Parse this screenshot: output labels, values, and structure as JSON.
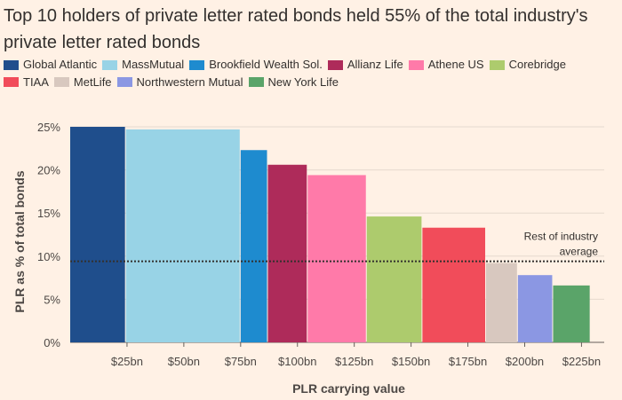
{
  "title": "Top 10 holders of private letter rated bonds held 55% of the total industry's private letter rated bonds",
  "chart_data": {
    "type": "bar",
    "variant": "variable-width (marimekko)",
    "title": "Top 10 holders of private letter rated bonds held 55% of the total industry's private letter rated bonds",
    "xlabel": "PLR carrying value",
    "ylabel": "PLR as % of total bonds",
    "xlim": [
      0,
      235
    ],
    "ylim": [
      0,
      25
    ],
    "x_tick_values": [
      25,
      50,
      75,
      100,
      125,
      150,
      175,
      200,
      225
    ],
    "x_tick_labels": [
      "$25bn",
      "$50bn",
      "$75bn",
      "$100bn",
      "$125bn",
      "$150bn",
      "$175bn",
      "$200bn",
      "$225bn"
    ],
    "y_tick_values": [
      0,
      5,
      10,
      15,
      20,
      25
    ],
    "y_tick_labels": [
      "0%",
      "5%",
      "10%",
      "15%",
      "20%",
      "25%"
    ],
    "series": [
      {
        "name": "Global Atlantic",
        "carrying_value_bn": 24.5,
        "value": 25.0,
        "color": "#1F4E8C"
      },
      {
        "name": "MassMutual",
        "carrying_value_bn": 50.5,
        "value": 24.7,
        "color": "#98D3E6"
      },
      {
        "name": "Brookfield Wealth Sol.",
        "carrying_value_bn": 12.0,
        "value": 22.3,
        "color": "#1E8BCF"
      },
      {
        "name": "Allianz Life",
        "carrying_value_bn": 17.5,
        "value": 20.6,
        "color": "#AE2B5A"
      },
      {
        "name": "Athene US",
        "carrying_value_bn": 26.0,
        "value": 19.4,
        "color": "#FF7AA9"
      },
      {
        "name": "Corebridge",
        "carrying_value_bn": 24.5,
        "value": 14.6,
        "color": "#ADCB6D"
      },
      {
        "name": "TIAA",
        "carrying_value_bn": 28.0,
        "value": 13.3,
        "color": "#F14C5A"
      },
      {
        "name": "MetLife",
        "carrying_value_bn": 14.0,
        "value": 9.2,
        "color": "#D8C8BF"
      },
      {
        "name": "Northwestern Mutual",
        "carrying_value_bn": 15.5,
        "value": 7.8,
        "color": "#8B97E3"
      },
      {
        "name": "New York Life",
        "carrying_value_bn": 16.5,
        "value": 6.6,
        "color": "#5AA469"
      }
    ],
    "reference_line": {
      "label": "Rest of industry average",
      "value": 9.4
    }
  }
}
